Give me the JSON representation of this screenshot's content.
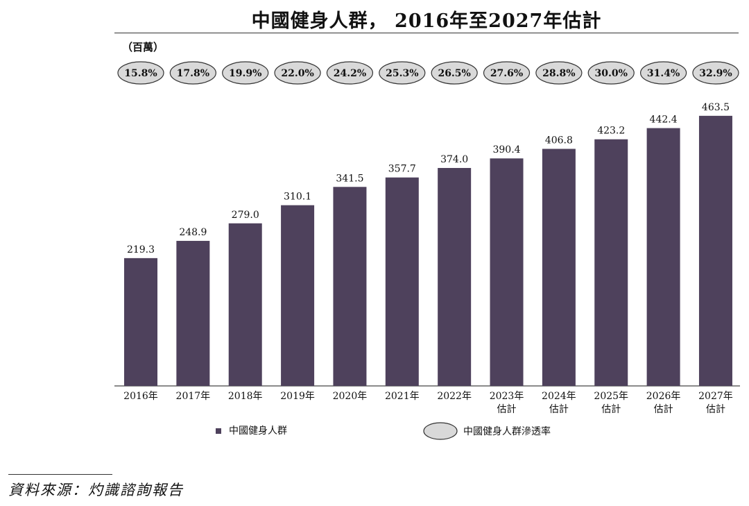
{
  "title": "中國健身人群， 2016年至2027年估計",
  "unit_label": "（百萬）",
  "source": "資料來源：灼識諮詢報告",
  "colors": {
    "bar": "#4e415c",
    "ellipse_fill": "#d9d9d9",
    "ellipse_stroke": "#333333"
  },
  "chart_data": {
    "type": "bar",
    "ylim": [
      0,
      480
    ],
    "categories": [
      [
        "2016年"
      ],
      [
        "2017年"
      ],
      [
        "2018年"
      ],
      [
        "2019年"
      ],
      [
        "2020年"
      ],
      [
        "2021年"
      ],
      [
        "2022年"
      ],
      [
        "2023年",
        "估計"
      ],
      [
        "2024年",
        "估計"
      ],
      [
        "2025年",
        "估計"
      ],
      [
        "2026年",
        "估計"
      ],
      [
        "2027年",
        "估計"
      ]
    ],
    "series": [
      {
        "name": "中國健身人群",
        "values": [
          219.3,
          248.9,
          279.0,
          310.1,
          341.5,
          357.7,
          374.0,
          390.4,
          406.8,
          423.2,
          442.4,
          463.5
        ],
        "labels": [
          "219.3",
          "248.9",
          "279.0",
          "310.1",
          "341.5",
          "357.7",
          "374.0",
          "390.4",
          "406.8",
          "423.2",
          "442.4",
          "463.5"
        ]
      },
      {
        "name": "中國健身人群滲透率",
        "values": [
          15.8,
          17.8,
          19.9,
          22.0,
          24.2,
          25.3,
          26.5,
          27.6,
          28.8,
          30.0,
          31.4,
          32.9
        ],
        "labels": [
          "15.8%",
          "17.8%",
          "19.9%",
          "22.0%",
          "24.2%",
          "25.3%",
          "26.5%",
          "27.6%",
          "28.8%",
          "30.0%",
          "31.4%",
          "32.9%"
        ]
      }
    ],
    "legend_position": "bottom",
    "grid": false
  }
}
